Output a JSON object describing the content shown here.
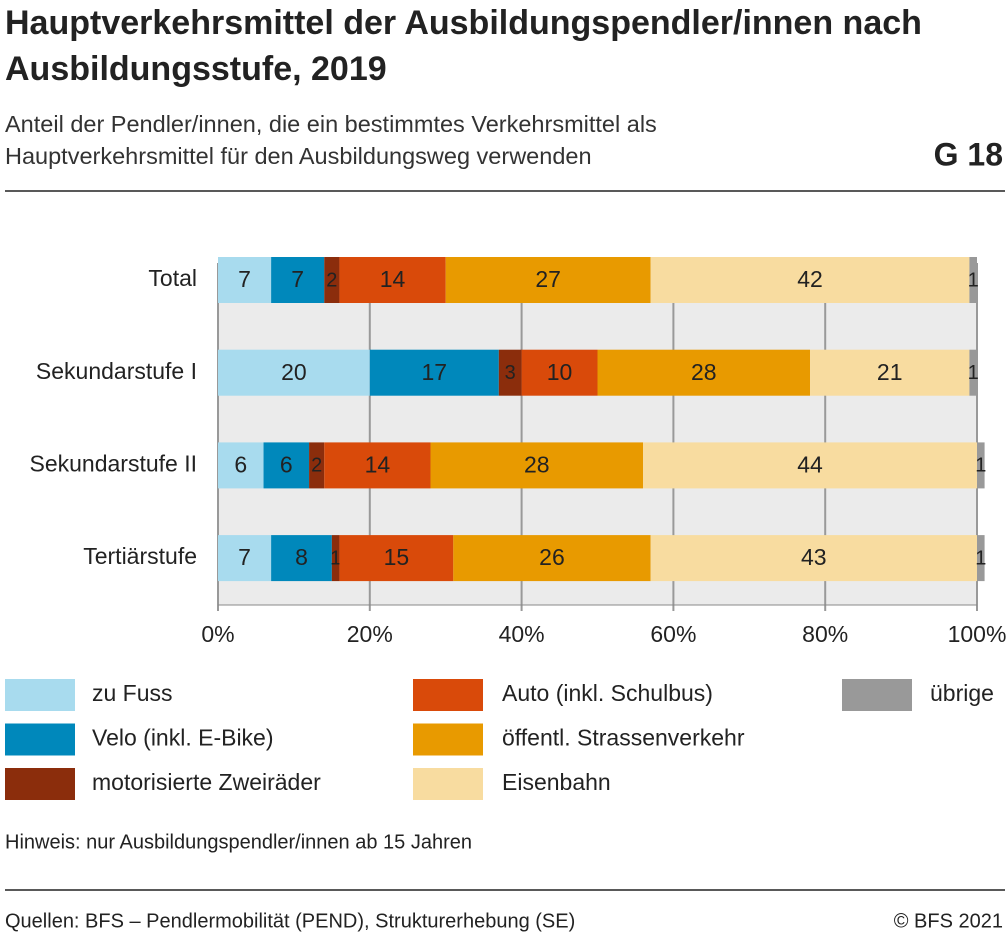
{
  "chart_data": {
    "type": "stacked-bar-horizontal",
    "title": "Hauptverkehrsmittel der Ausbildungspendler/innen nach Ausbildungsstufe, 2019",
    "subtitle": "Anteil der Pendler/innen, die ein bestimmtes Verkehrsmittel als Hauptverkehrsmittel für den Ausbildungsweg verwenden",
    "figure_label": "G 18",
    "categories": [
      "Total",
      "Sekundarstufe I",
      "Sekundarstufe II",
      "Tertiärstufe"
    ],
    "series": [
      {
        "name": "zu Fuss",
        "color": "#a8dbee",
        "label_color": "#333333",
        "values": [
          7,
          20,
          6,
          7
        ]
      },
      {
        "name": "Velo (inkl. E-Bike)",
        "color": "#0088bb",
        "label_color": "#ffffff",
        "values": [
          7,
          17,
          6,
          8
        ]
      },
      {
        "name": "motorisierte Zweiräder",
        "color": "#8b2d0c",
        "label_color": "#ffffff",
        "values": [
          2,
          3,
          2,
          1
        ]
      },
      {
        "name": "Auto (inkl. Schulbus)",
        "color": "#d94a0a",
        "label_color": "#ffffff",
        "values": [
          14,
          10,
          14,
          15
        ]
      },
      {
        "name": "öffentl. Strassenverkehr",
        "color": "#e89a00",
        "label_color": "#333333",
        "values": [
          27,
          28,
          28,
          26
        ]
      },
      {
        "name": "Eisenbahn",
        "color": "#f8dca0",
        "label_color": "#333333",
        "values": [
          42,
          21,
          44,
          43
        ]
      },
      {
        "name": "übrige",
        "color": "#999999",
        "label_color": "#333333",
        "values": [
          1,
          1,
          1,
          1
        ]
      }
    ],
    "xlim": [
      0,
      100
    ],
    "xticks": [
      {
        "value": 0,
        "label": "0%"
      },
      {
        "value": 20,
        "label": "20%"
      },
      {
        "value": 40,
        "label": "40%"
      },
      {
        "value": 60,
        "label": "60%"
      },
      {
        "value": 80,
        "label": "80%"
      },
      {
        "value": 100,
        "label": "100%"
      }
    ],
    "grid": true,
    "note": "Hinweis: nur Ausbildungspendler/innen ab 15 Jahren",
    "source": "Quellen: BFS – Pendlermobilität (PEND), Strukturerhebung (SE)",
    "copyright": "© BFS 2021"
  }
}
